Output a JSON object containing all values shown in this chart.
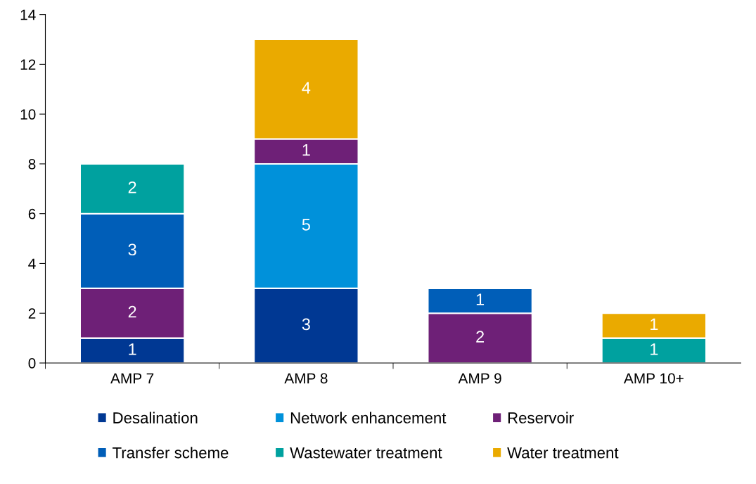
{
  "chart_data": {
    "type": "bar",
    "stacked": true,
    "categories": [
      "AMP 7",
      "AMP 8",
      "AMP 9",
      "AMP 10+"
    ],
    "series": [
      {
        "name": "Desalination",
        "color": "#003893",
        "values": [
          1,
          3,
          null,
          null
        ]
      },
      {
        "name": "Network enhancement",
        "color": "#0091da",
        "values": [
          null,
          5,
          null,
          null
        ]
      },
      {
        "name": "Reservoir",
        "color": "#6e2077",
        "values": [
          2,
          1,
          2,
          null
        ]
      },
      {
        "name": "Transfer scheme",
        "color": "#005eb8",
        "values": [
          3,
          null,
          1,
          null
        ]
      },
      {
        "name": "Wastewater treatment",
        "color": "#00a19f",
        "values": [
          2,
          null,
          null,
          1
        ]
      },
      {
        "name": "Water treatment",
        "color": "#eaaa00",
        "values": [
          null,
          4,
          null,
          1
        ]
      }
    ],
    "ylim": [
      0,
      14
    ],
    "yticks": [
      0,
      2,
      4,
      6,
      8,
      10,
      12,
      14
    ],
    "data_labels": true,
    "grid": false,
    "legend": "bottom"
  }
}
